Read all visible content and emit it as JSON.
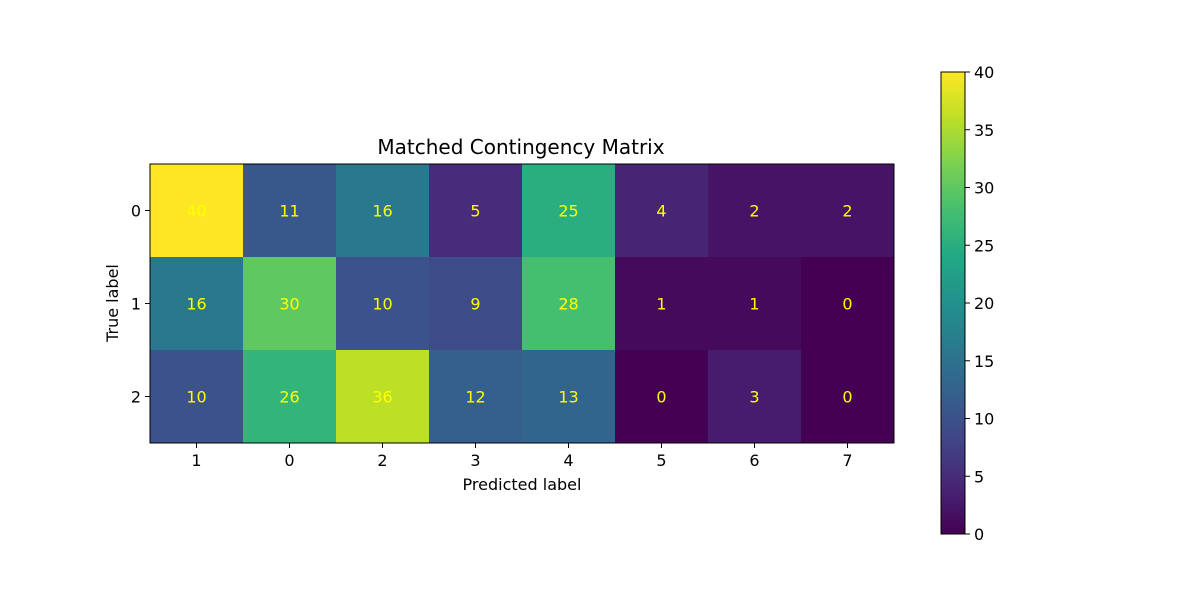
{
  "chart_data": {
    "type": "heatmap",
    "title": "Matched Contingency Matrix",
    "xlabel": "Predicted label",
    "ylabel": "True label",
    "x_categories": [
      "1",
      "0",
      "2",
      "3",
      "4",
      "5",
      "6",
      "7"
    ],
    "y_categories": [
      "0",
      "1",
      "2"
    ],
    "values": [
      [
        40,
        11,
        16,
        5,
        25,
        4,
        2,
        2
      ],
      [
        16,
        30,
        10,
        9,
        28,
        1,
        1,
        0
      ],
      [
        10,
        26,
        36,
        12,
        13,
        0,
        3,
        0
      ]
    ],
    "colormap": "viridis",
    "value_text_color": "#ffff00",
    "colorbar": {
      "range": [
        0,
        40
      ],
      "ticks": [
        "0",
        "5",
        "10",
        "15",
        "20",
        "25",
        "30",
        "35",
        "40"
      ]
    }
  }
}
